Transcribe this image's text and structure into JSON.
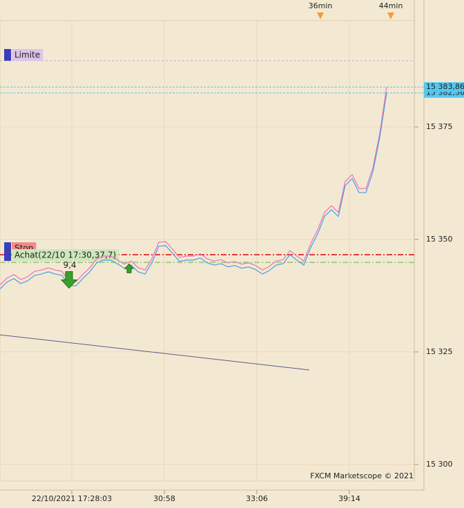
{
  "chart_data": {
    "type": "line",
    "watermark": "FXCM Marketscope © 2021",
    "xlim": [
      0,
      60
    ],
    "ylim": [
      15296.3,
      15398.6
    ],
    "xticks": [
      {
        "value": 10.4,
        "label": "22/10/2021 17:28:03"
      },
      {
        "value": 23.8,
        "label": "30:58"
      },
      {
        "value": 37.2,
        "label": "33:06"
      },
      {
        "value": 50.6,
        "label": "39:14"
      }
    ],
    "yticks": [
      {
        "value": 15300,
        "label": "15 300"
      },
      {
        "value": 15325,
        "label": "15 325"
      },
      {
        "value": 15350,
        "label": "15 350"
      },
      {
        "value": 15375,
        "label": "15 375"
      }
    ],
    "grid": true,
    "top_markers": [
      {
        "value": 46.4,
        "label": "36min"
      },
      {
        "value": 56.6,
        "label": "44min"
      }
    ],
    "series": [
      {
        "color": "#f070b0",
        "values": [
          15339.9,
          15341.4,
          15342.2,
          15341.1,
          15341.7,
          15342.9,
          15343.2,
          15343.7,
          15343.2,
          15342.9,
          15340.6,
          15340.6,
          15342.2,
          15343.7,
          15345.7,
          15346.3,
          15346.3,
          15345.5,
          15344.5,
          15345.2,
          15343.7,
          15343.2,
          15345.7,
          15349.4,
          15349.5,
          15347.8,
          15346.0,
          15346.3,
          15346.3,
          15346.8,
          15345.7,
          15345.2,
          15345.5,
          15344.8,
          15345.1,
          15344.5,
          15344.8,
          15344.2,
          15343.2,
          15344.0,
          15345.2,
          15345.5,
          15347.5,
          15346.3,
          15345.2,
          15349.1,
          15352.1,
          15356.0,
          15357.5,
          15356.0,
          15362.9,
          15364.4,
          15361.3,
          15361.3,
          15365.9,
          15373.6,
          15383.86
        ]
      },
      {
        "color": "#4a9be8",
        "values": [
          15339.0,
          15340.5,
          15341.3,
          15340.2,
          15340.8,
          15342.0,
          15342.3,
          15342.8,
          15342.3,
          15342.0,
          15339.7,
          15339.7,
          15341.3,
          15342.8,
          15344.8,
          15345.4,
          15345.4,
          15344.6,
          15343.6,
          15344.3,
          15342.8,
          15342.3,
          15344.8,
          15348.5,
          15348.6,
          15346.9,
          15345.1,
          15345.4,
          15345.4,
          15345.9,
          15344.8,
          15344.3,
          15344.6,
          15343.9,
          15344.2,
          15343.6,
          15343.9,
          15343.3,
          15342.3,
          15343.1,
          15344.3,
          15344.6,
          15346.6,
          15345.4,
          15344.3,
          15348.2,
          15351.2,
          15355.1,
          15356.6,
          15355.1,
          15362.0,
          15363.5,
          15360.4,
          15360.4,
          15365.0,
          15372.7,
          15382.56
        ]
      }
    ],
    "levels": [
      {
        "label": "Limite",
        "value": 15389.7,
        "color": "#c9a6d9",
        "box": "#dcc4ea"
      },
      {
        "label": "Stop",
        "value": 15346.6,
        "color": "#e03a3a",
        "box": "#f08a8a"
      },
      {
        "label": "Achat(22/10 17:30,37,7)",
        "value": 15344.9,
        "color": "#a3cf86",
        "box": "#cfe6bb"
      }
    ],
    "price_tags": [
      {
        "value": 15383.86,
        "label": "15 383,86"
      },
      {
        "value": 15382.56,
        "label": "15 382,56"
      }
    ],
    "trendline": {
      "x": [
        0,
        44.8
      ],
      "values": [
        15328.8,
        15321.0
      ],
      "color": "#5a5a8a"
    },
    "trades": [
      {
        "x": 10,
        "value": 15341.0,
        "label": "9,4",
        "direction": "down"
      },
      {
        "x": 18.7,
        "value": 15343.5,
        "direction": "up"
      }
    ]
  }
}
